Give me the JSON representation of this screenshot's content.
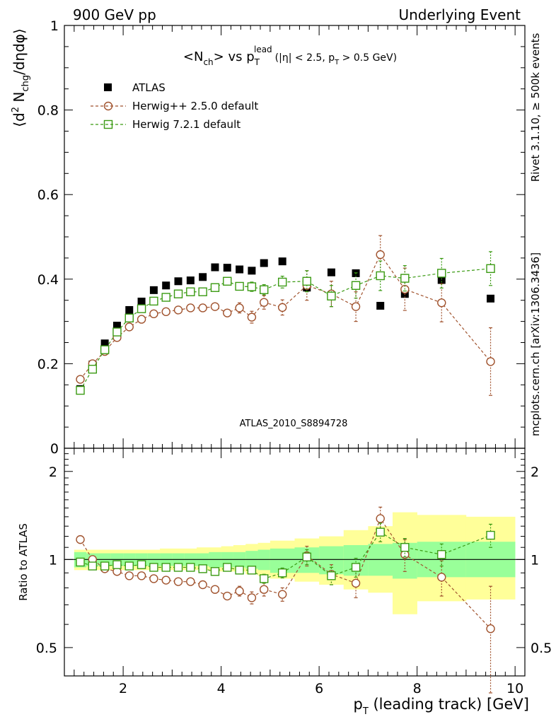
{
  "header": {
    "left": "900 GeV pp",
    "right": "Underlying Event"
  },
  "plot_title": {
    "main": "<N",
    "main_sub": "ch",
    "mid": "> vs p",
    "mid_sub": "T",
    "mid_sup": "lead",
    "cuts_a": "(|η| < 2.5, p",
    "cuts_sub": "T",
    "cuts_b": " > 0.5 GeV)"
  },
  "ylabel_main": {
    "a": "⟨d",
    "sup": "2",
    "b": " N",
    "sub": "chg",
    "c": "/dηdφ⟩"
  },
  "ylabel_ratio": "Ratio to ATLAS",
  "xlabel": {
    "a": "p",
    "sub": "T",
    "b": " (leading track) [GeV]"
  },
  "side_labels": {
    "rivet": "Rivet 3.1.10, ≥ 500k events",
    "mcplots": "mcplots.cern.ch [arXiv:1306.3436]"
  },
  "watermark": "ATLAS_2010_S8894728",
  "colors": {
    "herwig_old": "#a0522d",
    "herwig_new": "#3a9a12",
    "band_inner": "#99ff99",
    "band_outer": "#ffff99"
  },
  "legend": [
    {
      "name": "ATLAS"
    },
    {
      "name": "Herwig++ 2.5.0 default"
    },
    {
      "name": "Herwig 7.2.1 default"
    }
  ],
  "chart_data": [
    {
      "type": "scatter",
      "title": "<Nch> vs pT lead (|η| < 2.5, pT > 0.5 GeV)",
      "xlabel": "pT (leading track) [GeV]",
      "ylabel": "⟨d2 Nchg/dηdφ⟩",
      "xlim": [
        0.8,
        10.2
      ],
      "ylim": [
        0,
        1
      ],
      "xticks": [
        "2",
        "4",
        "6",
        "8",
        "10"
      ],
      "yticks": [
        "0",
        "0.2",
        "0.4",
        "0.6",
        "0.8",
        "1"
      ],
      "x": [
        1.125,
        1.375,
        1.625,
        1.875,
        2.125,
        2.375,
        2.625,
        2.875,
        3.125,
        3.375,
        3.625,
        3.875,
        4.125,
        4.375,
        4.625,
        4.875,
        5.25,
        5.75,
        6.25,
        6.75,
        7.25,
        7.75,
        8.5,
        9.5
      ],
      "series": [
        {
          "name": "ATLAS",
          "values": [
            0.14,
            0.198,
            0.248,
            0.29,
            0.327,
            0.347,
            0.374,
            0.385,
            0.395,
            0.397,
            0.405,
            0.428,
            0.427,
            0.423,
            0.42,
            0.438,
            0.442,
            0.38,
            0.416,
            0.414,
            0.337,
            0.365,
            0.398,
            0.354
          ]
        },
        {
          "name": "Herwig++ 2.5.0 default",
          "values": [
            0.163,
            0.2,
            0.229,
            0.262,
            0.287,
            0.305,
            0.318,
            0.323,
            0.327,
            0.332,
            0.332,
            0.335,
            0.32,
            0.332,
            0.31,
            0.345,
            0.333,
            0.385,
            0.365,
            0.335,
            0.458,
            0.376,
            0.344,
            0.205
          ],
          "errors": [
            0.003,
            0.003,
            0.004,
            0.004,
            0.005,
            0.006,
            0.006,
            0.006,
            0.006,
            0.007,
            0.007,
            0.008,
            0.01,
            0.012,
            0.014,
            0.016,
            0.018,
            0.035,
            0.03,
            0.035,
            0.045,
            0.05,
            0.045,
            0.08
          ]
        },
        {
          "name": "Herwig 7.2.1 default",
          "values": [
            0.137,
            0.187,
            0.233,
            0.275,
            0.308,
            0.33,
            0.348,
            0.357,
            0.365,
            0.37,
            0.37,
            0.38,
            0.395,
            0.383,
            0.382,
            0.375,
            0.393,
            0.395,
            0.36,
            0.385,
            0.408,
            0.402,
            0.414,
            0.425
          ],
          "errors": [
            0.003,
            0.003,
            0.004,
            0.004,
            0.005,
            0.005,
            0.006,
            0.006,
            0.006,
            0.007,
            0.007,
            0.008,
            0.009,
            0.01,
            0.011,
            0.012,
            0.014,
            0.025,
            0.025,
            0.03,
            0.035,
            0.03,
            0.035,
            0.04
          ]
        }
      ]
    },
    {
      "type": "scatter",
      "title": "Ratio to ATLAS",
      "xlabel": "pT (leading track) [GeV]",
      "ylabel": "Ratio to ATLAS",
      "xlim": [
        0.8,
        10.2
      ],
      "ylim": [
        0.4,
        2.4
      ],
      "yticks": [
        "0.5",
        "1",
        "2"
      ],
      "x": [
        1.125,
        1.375,
        1.625,
        1.875,
        2.125,
        2.375,
        2.625,
        2.875,
        3.125,
        3.375,
        3.625,
        3.875,
        4.125,
        4.375,
        4.625,
        4.875,
        5.25,
        5.75,
        6.25,
        6.75,
        7.25,
        7.75,
        8.5,
        9.5
      ],
      "bin_edges": [
        1.0,
        1.25,
        1.5,
        1.75,
        2.0,
        2.25,
        2.5,
        2.75,
        3.0,
        3.25,
        3.5,
        3.75,
        4.0,
        4.25,
        4.5,
        4.75,
        5.0,
        5.5,
        6.0,
        6.5,
        7.0,
        7.5,
        8.0,
        9.0,
        10.0
      ],
      "band_inner": {
        "low": [
          0.94,
          0.95,
          0.95,
          0.95,
          0.95,
          0.95,
          0.95,
          0.95,
          0.95,
          0.95,
          0.95,
          0.94,
          0.94,
          0.94,
          0.93,
          0.92,
          0.9,
          0.9,
          0.89,
          0.88,
          0.88,
          0.86,
          0.87,
          0.87
        ],
        "high": [
          1.06,
          1.05,
          1.05,
          1.05,
          1.05,
          1.05,
          1.05,
          1.05,
          1.05,
          1.05,
          1.05,
          1.06,
          1.06,
          1.06,
          1.07,
          1.08,
          1.09,
          1.1,
          1.11,
          1.12,
          1.13,
          1.14,
          1.15,
          1.15
        ]
      },
      "band_outer": {
        "low": [
          0.92,
          0.92,
          0.92,
          0.92,
          0.92,
          0.92,
          0.92,
          0.92,
          0.92,
          0.92,
          0.92,
          0.91,
          0.91,
          0.91,
          0.89,
          0.88,
          0.86,
          0.84,
          0.82,
          0.79,
          0.77,
          0.65,
          0.72,
          0.73
        ],
        "high": [
          1.08,
          1.08,
          1.08,
          1.08,
          1.08,
          1.08,
          1.08,
          1.09,
          1.09,
          1.09,
          1.1,
          1.1,
          1.11,
          1.12,
          1.13,
          1.14,
          1.16,
          1.18,
          1.2,
          1.26,
          1.3,
          1.45,
          1.42,
          1.4
        ]
      },
      "series": [
        {
          "name": "Herwig++ 2.5.0 default",
          "values": [
            1.17,
            1.0,
            0.93,
            0.91,
            0.88,
            0.88,
            0.86,
            0.85,
            0.84,
            0.84,
            0.82,
            0.79,
            0.75,
            0.78,
            0.74,
            0.79,
            0.76,
            1.03,
            0.89,
            0.83,
            1.38,
            1.04,
            0.87,
            0.58
          ],
          "errors": [
            0.02,
            0.02,
            0.02,
            0.02,
            0.02,
            0.02,
            0.02,
            0.02,
            0.02,
            0.02,
            0.02,
            0.02,
            0.025,
            0.03,
            0.035,
            0.04,
            0.04,
            0.08,
            0.07,
            0.09,
            0.13,
            0.13,
            0.12,
            0.23
          ]
        },
        {
          "name": "Herwig 7.2.1 default",
          "values": [
            0.98,
            0.95,
            0.95,
            0.96,
            0.95,
            0.96,
            0.94,
            0.94,
            0.94,
            0.94,
            0.93,
            0.91,
            0.94,
            0.92,
            0.92,
            0.86,
            0.9,
            1.02,
            0.88,
            0.94,
            1.24,
            1.1,
            1.04,
            1.21
          ],
          "errors": [
            0.02,
            0.02,
            0.02,
            0.02,
            0.02,
            0.02,
            0.02,
            0.02,
            0.02,
            0.02,
            0.02,
            0.02,
            0.02,
            0.025,
            0.03,
            0.03,
            0.035,
            0.06,
            0.06,
            0.07,
            0.09,
            0.08,
            0.09,
            0.11
          ]
        }
      ]
    }
  ]
}
